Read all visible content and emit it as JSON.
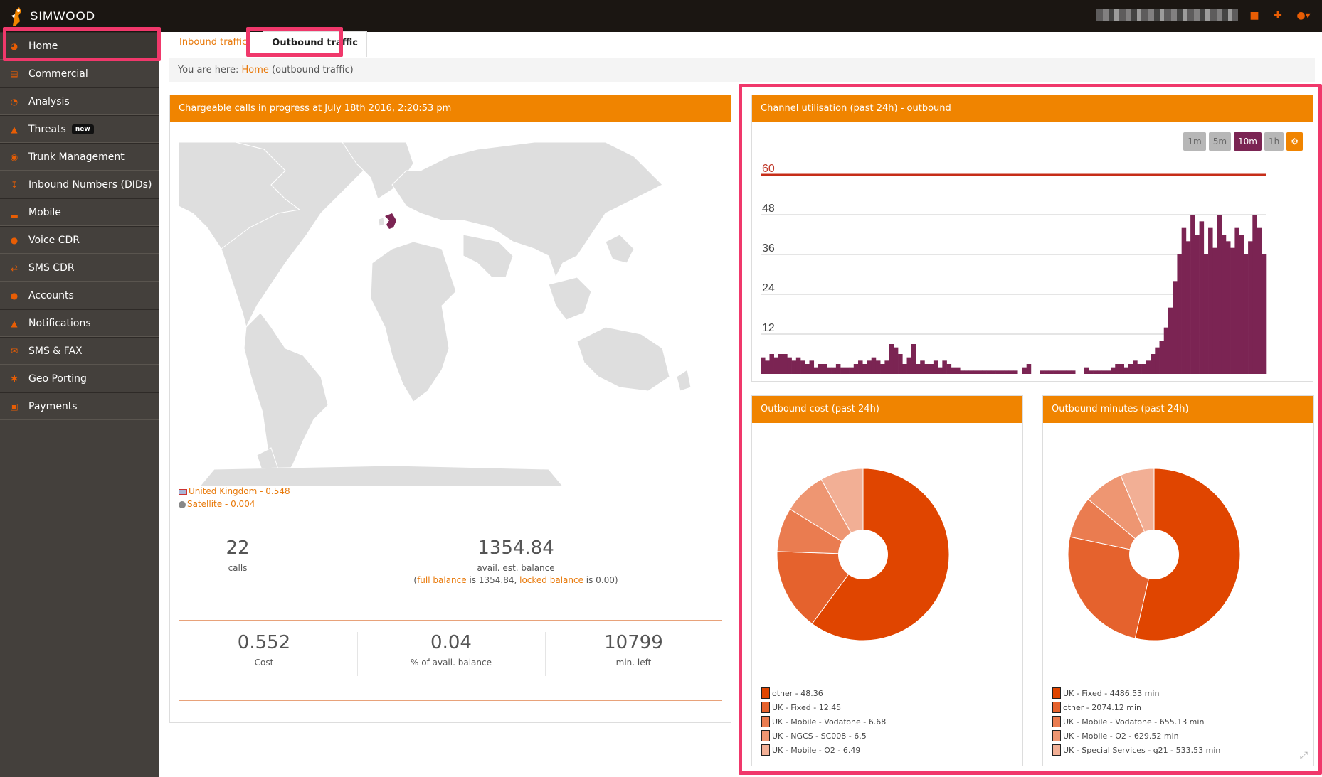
{
  "brand": {
    "name": "SIMWOOD"
  },
  "sidebar": {
    "items": [
      {
        "label": "Home",
        "icon": "speedometer-icon"
      },
      {
        "label": "Commercial",
        "icon": "bank-icon"
      },
      {
        "label": "Analysis",
        "icon": "pie-chart-icon"
      },
      {
        "label": "Threats",
        "icon": "warning-icon",
        "badge": "new"
      },
      {
        "label": "Trunk Management",
        "icon": "trunk-icon"
      },
      {
        "label": "Inbound Numbers (DIDs)",
        "icon": "download-icon"
      },
      {
        "label": "Mobile",
        "icon": "signal-icon"
      },
      {
        "label": "Voice CDR",
        "icon": "chat-icon"
      },
      {
        "label": "SMS CDR",
        "icon": "shuffle-icon"
      },
      {
        "label": "Accounts",
        "icon": "user-icon"
      },
      {
        "label": "Notifications",
        "icon": "bell-icon"
      },
      {
        "label": "SMS & FAX",
        "icon": "envelope-icon"
      },
      {
        "label": "Geo Porting",
        "icon": "asterisk-icon"
      },
      {
        "label": "Payments",
        "icon": "money-icon"
      }
    ]
  },
  "tabs": [
    {
      "label": "Inbound traffic"
    },
    {
      "label": "Outbound traffic"
    }
  ],
  "breadcrumb": {
    "prefix": "You are here:",
    "link": "Home",
    "suffix": "(outbound traffic)"
  },
  "calls_panel": {
    "title": "Chargeable calls in progress at July 18th 2016, 2:20:53 pm",
    "countries": [
      {
        "label": "United Kingdom - 0.548"
      },
      {
        "label": "Satellite - 0.004"
      }
    ],
    "stats_top": [
      {
        "value": "22",
        "label": "calls"
      },
      {
        "value": "1354.84",
        "label": "avail. est. balance"
      }
    ],
    "balance_note": {
      "open": "(",
      "full_link": "full balance",
      "full_text": " is 1354.84, ",
      "locked_link": "locked balance",
      "locked_text": " is 0.00)"
    },
    "stats_bottom": [
      {
        "value": "0.552",
        "label": "Cost"
      },
      {
        "value": "0.04",
        "label": "% of avail. balance"
      },
      {
        "value": "10799",
        "label": "min. left"
      }
    ],
    "highlight_color": "#7b2453"
  },
  "channel_panel": {
    "title": "Channel utilisation (past 24h) - outbound",
    "ranges": [
      {
        "label": "1m",
        "active": false
      },
      {
        "label": "5m",
        "active": false
      },
      {
        "label": "10m",
        "active": true
      },
      {
        "label": "1h",
        "active": false
      }
    ],
    "settings_icon": "gears-icon"
  },
  "chart_data": [
    {
      "type": "bar",
      "ylim": [
        0,
        60
      ],
      "yticks": [
        12,
        24,
        36,
        48,
        60
      ],
      "limit_line": 60,
      "color": "#7b2453",
      "values": [
        5,
        4,
        6,
        5,
        6,
        6,
        5,
        4,
        5,
        4,
        3,
        4,
        2,
        3,
        3,
        2,
        2,
        3,
        2,
        2,
        2,
        3,
        4,
        3,
        4,
        5,
        4,
        3,
        4,
        9,
        8,
        6,
        3,
        5,
        9,
        3,
        4,
        3,
        3,
        4,
        2,
        4,
        3,
        2,
        2,
        1,
        1,
        1,
        1,
        1,
        1,
        1,
        1,
        1,
        1,
        1,
        1,
        1,
        0,
        2,
        3,
        0,
        0,
        1,
        1,
        1,
        1,
        1,
        1,
        1,
        1,
        0,
        0,
        2,
        1,
        1,
        1,
        1,
        1,
        2,
        3,
        3,
        2,
        3,
        4,
        3,
        3,
        4,
        6,
        8,
        10,
        14,
        20,
        28,
        36,
        44,
        40,
        48,
        42,
        46,
        36,
        44,
        38,
        48,
        42,
        40,
        38,
        44,
        42,
        36,
        40,
        48,
        44,
        36
      ]
    },
    {
      "type": "pie",
      "title": "Outbound cost (past 24h)",
      "slices": [
        {
          "label": "other - 48.36",
          "value": 48.36,
          "color": "#e04500"
        },
        {
          "label": "UK - Fixed - 12.45",
          "value": 12.45,
          "color": "#e5622d"
        },
        {
          "label": "UK - Mobile - Vodafone - 6.68",
          "value": 6.68,
          "color": "#ea7c50"
        },
        {
          "label": "UK - NGCS - SC008 - 6.5",
          "value": 6.5,
          "color": "#ee9672"
        },
        {
          "label": "UK - Mobile - O2 - 6.49",
          "value": 6.49,
          "color": "#f2af95"
        }
      ]
    },
    {
      "type": "pie",
      "title": "Outbound minutes (past 24h)",
      "slices": [
        {
          "label": "UK - Fixed - 4486.53 min",
          "value": 4486.53,
          "color": "#e04500"
        },
        {
          "label": "other - 2074.12 min",
          "value": 2074.12,
          "color": "#e5622d"
        },
        {
          "label": "UK - Mobile - Vodafone - 655.13 min",
          "value": 655.13,
          "color": "#ea7c50"
        },
        {
          "label": "UK - Mobile - O2 - 629.52 min",
          "value": 629.52,
          "color": "#ee9672"
        },
        {
          "label": "UK - Special Services - g21 - 533.53 min",
          "value": 533.53,
          "color": "#f2af95"
        }
      ]
    }
  ]
}
